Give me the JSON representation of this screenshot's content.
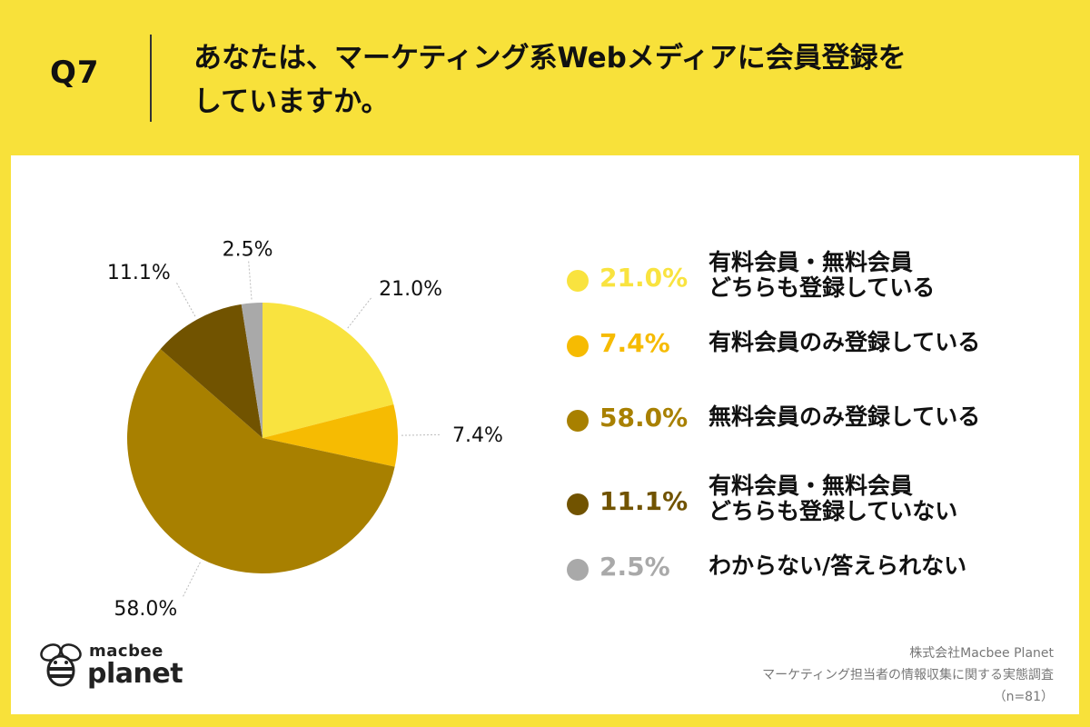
{
  "header": {
    "qnum": "Q7",
    "question_line1": "あなたは、マーケティング系Webメディアに会員登録を",
    "question_line2": "していますか。"
  },
  "chart_data": {
    "type": "pie",
    "slices": [
      {
        "label": "有料会員・無料会員どちらも登録している",
        "label_lines": [
          "有料会員・無料会員",
          "どちらも登録している"
        ],
        "value": 21.0,
        "value_label": "21.0%",
        "color": "#f9e33f"
      },
      {
        "label": "有料会員のみ登録している",
        "label_lines": [
          "有料会員のみ登録している"
        ],
        "value": 7.4,
        "value_label": "7.4%",
        "color": "#f6bb02"
      },
      {
        "label": "無料会員のみ登録している",
        "label_lines": [
          "無料会員のみ登録している"
        ],
        "value": 58.0,
        "value_label": "58.0%",
        "color": "#a88000"
      },
      {
        "label": "有料会員・無料会員どちらも登録していない",
        "label_lines": [
          "有料会員・無料会員",
          "どちらも登録していない"
        ],
        "value": 11.1,
        "value_label": "11.1%",
        "color": "#715300"
      },
      {
        "label": "わからない/答えられない",
        "label_lines": [
          "わからない/答えられない"
        ],
        "value": 2.5,
        "value_label": "2.5%",
        "color": "#a9a9a9"
      }
    ]
  },
  "source": {
    "company": "株式会社Macbee Planet",
    "survey": "マーケティング担当者の情報収集に関する実態調査",
    "n": "（n=81）"
  },
  "logo": {
    "top": "macbee",
    "bottom": "planet"
  }
}
